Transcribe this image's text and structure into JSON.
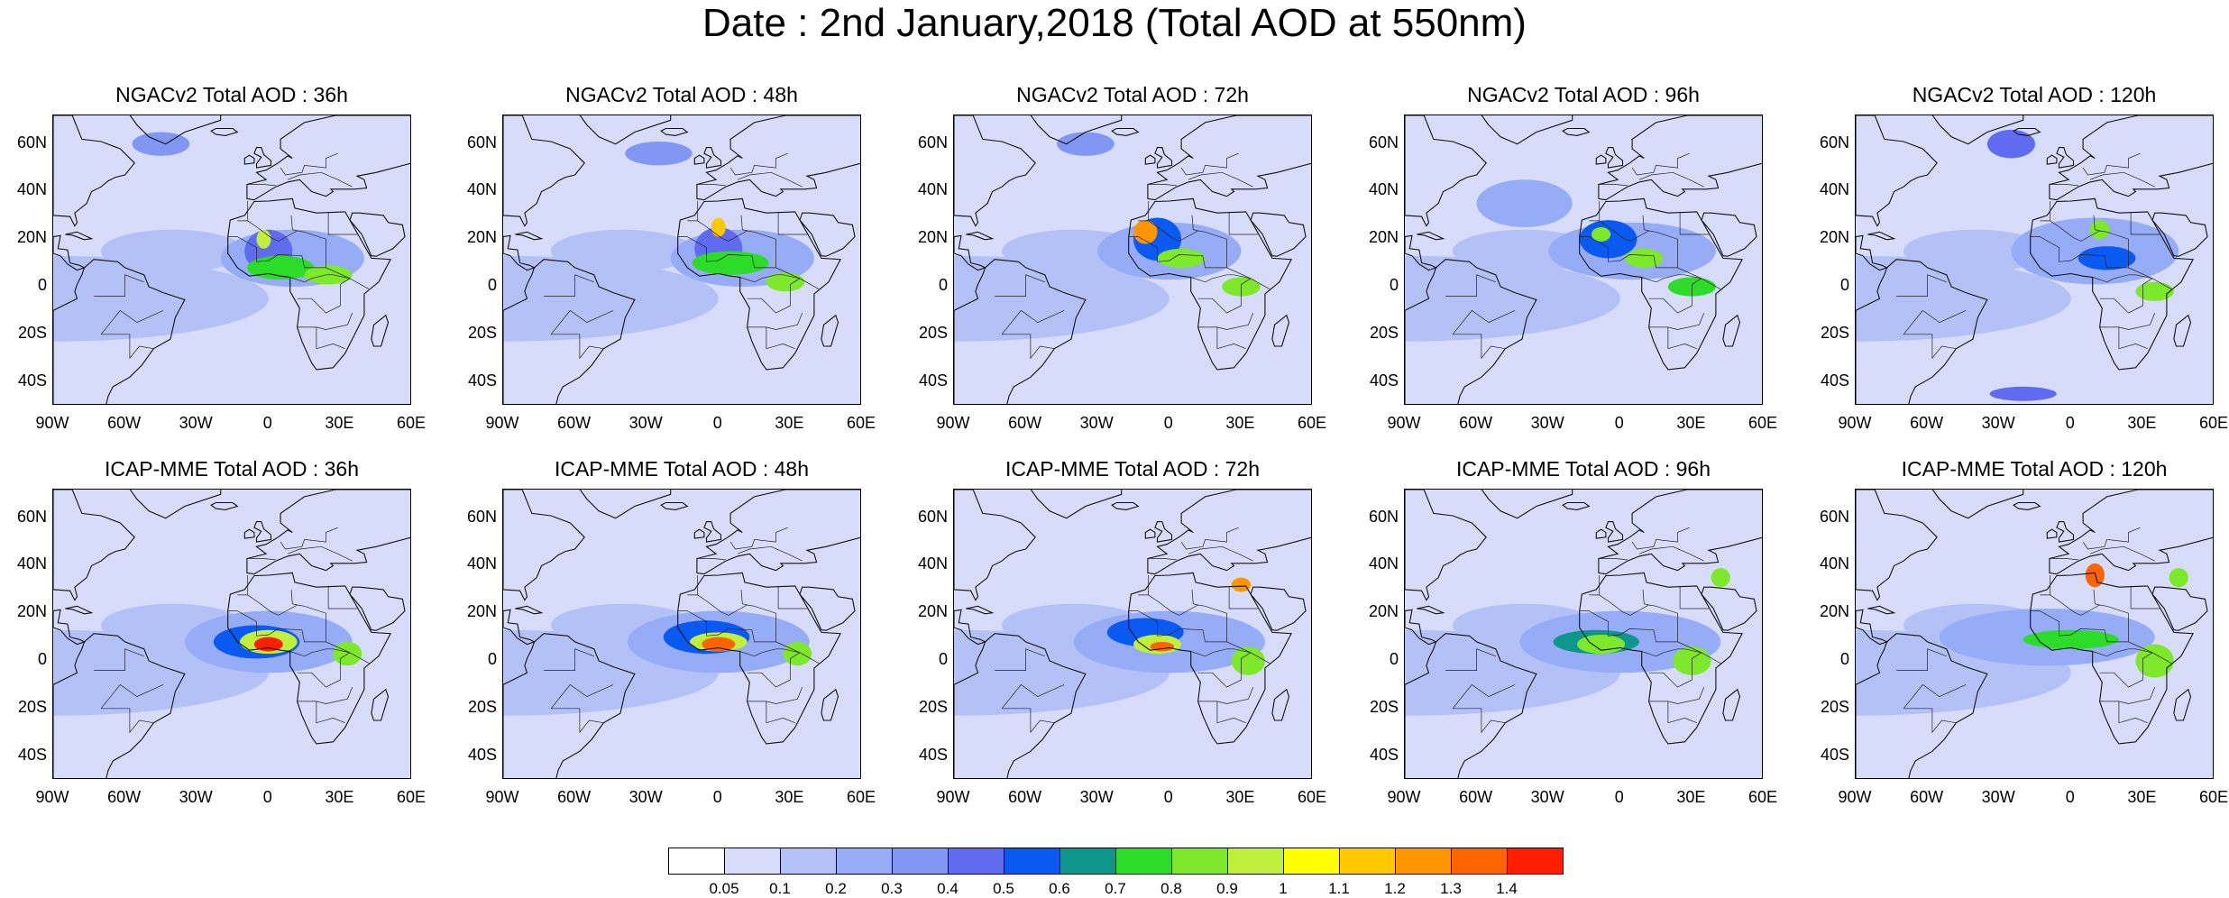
{
  "title": "Date : 2nd January,2018 (Total AOD at 550nm)",
  "panels": [
    {
      "title": "NGACv2 Total AOD : 36h",
      "model": "NGACv2",
      "lead": "36h"
    },
    {
      "title": "NGACv2 Total AOD : 48h",
      "model": "NGACv2",
      "lead": "48h"
    },
    {
      "title": "NGACv2 Total AOD : 72h",
      "model": "NGACv2",
      "lead": "72h"
    },
    {
      "title": "NGACv2 Total AOD : 96h",
      "model": "NGACv2",
      "lead": "96h"
    },
    {
      "title": "NGACv2 Total AOD : 120h",
      "model": "NGACv2",
      "lead": "120h"
    },
    {
      "title": "ICAP-MME Total AOD : 36h",
      "model": "ICAP-MME",
      "lead": "36h"
    },
    {
      "title": "ICAP-MME Total AOD : 48h",
      "model": "ICAP-MME",
      "lead": "48h"
    },
    {
      "title": "ICAP-MME Total AOD : 72h",
      "model": "ICAP-MME",
      "lead": "72h"
    },
    {
      "title": "ICAP-MME Total AOD : 96h",
      "model": "ICAP-MME",
      "lead": "96h"
    },
    {
      "title": "ICAP-MME Total AOD : 120h",
      "model": "ICAP-MME",
      "lead": "120h"
    }
  ],
  "lat_ticks": [
    "60N",
    "40N",
    "20N",
    "0",
    "20S",
    "40S"
  ],
  "lon_ticks": [
    "90W",
    "60W",
    "30W",
    "0",
    "30E",
    "60E"
  ],
  "map_extent": {
    "lon_min": -90,
    "lon_max": 60,
    "lat_min": -50,
    "lat_max": 72
  },
  "colorbar": {
    "labels": [
      "0.05",
      "0.1",
      "0.2",
      "0.3",
      "0.4",
      "0.5",
      "0.6",
      "0.7",
      "0.8",
      "0.9",
      "1",
      "1.1",
      "1.2",
      "1.3",
      "1.4"
    ],
    "colors": [
      "#ffffff",
      "#d6dcfa",
      "#b4c1f7",
      "#96acf6",
      "#8296f4",
      "#5f6cf0",
      "#0a5af2",
      "#0f968c",
      "#2ddc28",
      "#7ee82a",
      "#c0f03c",
      "#ffff00",
      "#ffc800",
      "#ff9600",
      "#ff6400",
      "#ff1e00"
    ]
  }
}
